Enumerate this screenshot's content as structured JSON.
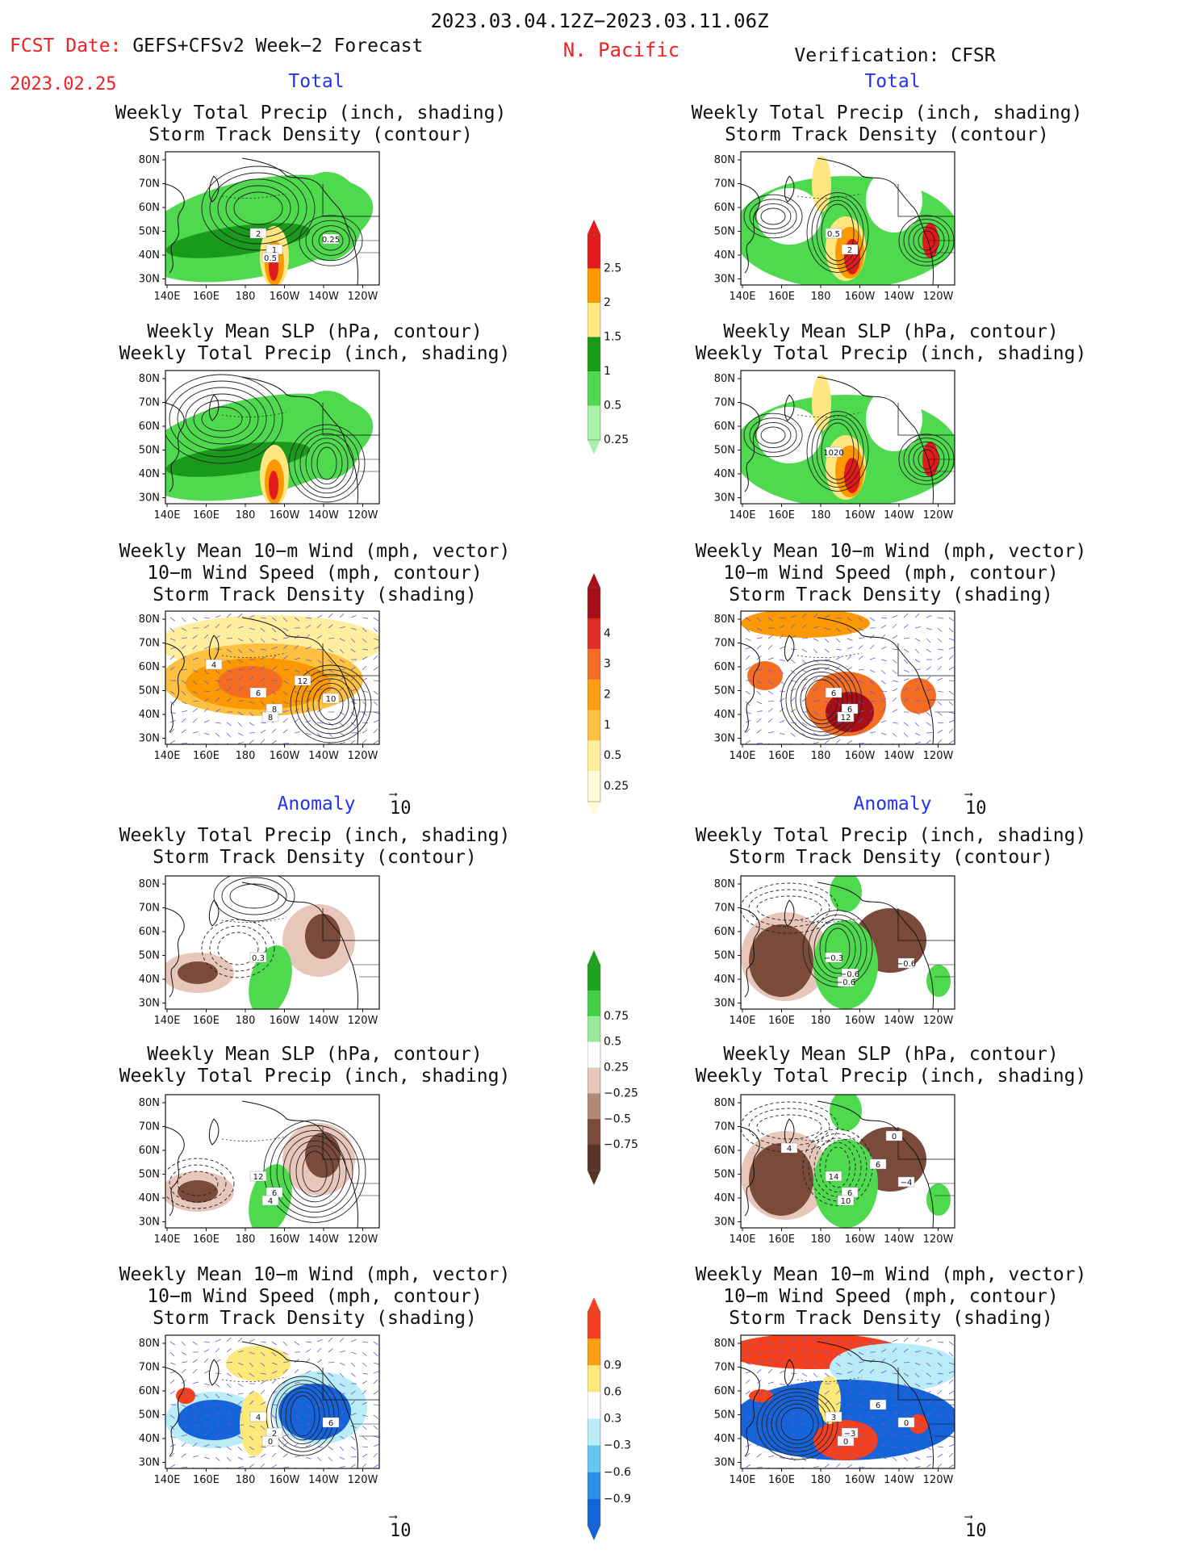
{
  "header": {
    "period": "2023.03.04.12Z−2023.03.11.06Z",
    "fcst_label": "FCST Date: ",
    "fcst_model": "GEFS+CFSv2 Week−2 Forecast",
    "fcst_date": "2023.02.25",
    "region": "N. Pacific",
    "verification": "Verification: CFSR"
  },
  "sections": {
    "total": "Total",
    "anomaly": "Anomaly"
  },
  "titles": {
    "precip_storm": [
      "Weekly Total Precip (inch, shading)",
      "Storm Track Density (contour)"
    ],
    "slp_precip": [
      "Weekly Mean SLP (hPa, contour)",
      "Weekly Total Precip (inch, shading)"
    ],
    "wind_storm": [
      "Weekly Mean 10−m Wind (mph, vector)",
      "10−m Wind Speed (mph, contour)",
      "Storm Track Density (shading)"
    ]
  },
  "axes": {
    "lat_labels": [
      "80N",
      "70N",
      "60N",
      "50N",
      "40N",
      "30N"
    ],
    "lon_labels": [
      "140E",
      "160E",
      "180",
      "160W",
      "140W",
      "120W"
    ]
  },
  "colorbars": {
    "precip_total": {
      "labels": [
        "2.5",
        "2",
        "1.5",
        "1",
        "0.5",
        "0.25"
      ],
      "colors": [
        "#e31a1c",
        "#fd9900",
        "#fee680",
        "#1a9a1a",
        "#4fd94f",
        "#a8f0a8"
      ]
    },
    "storm_total": {
      "labels": [
        "4",
        "3",
        "2",
        "1",
        "0.5",
        "0.25"
      ],
      "colors": [
        "#a50f15",
        "#de2d26",
        "#f46d23",
        "#fd9f13",
        "#fdc040",
        "#feee9e",
        "#fffbd6"
      ]
    },
    "precip_anom": {
      "labels": [
        "0.75",
        "0.5",
        "0.25",
        "−0.25",
        "−0.5",
        "−0.75"
      ],
      "colors": [
        "#1fa31f",
        "#42d142",
        "#9ae89a",
        "#ffffff",
        "#e8c7bb",
        "#b58978",
        "#7a4a3b",
        "#5a3327"
      ]
    },
    "storm_anom": {
      "labels": [
        "0.9",
        "0.6",
        "0.3",
        "−0.3",
        "−0.6",
        "−0.9"
      ],
      "colors": [
        "#f5401f",
        "#fd9f13",
        "#fde97a",
        "#ffffff",
        "#b9ecf7",
        "#63c6f0",
        "#2a8fe6",
        "#1563d9"
      ]
    }
  },
  "contour_labels": {
    "f_total_precip": [
      "2",
      "1",
      "0.5",
      "0.25"
    ],
    "v_total_precip": [
      "0.5",
      "2"
    ],
    "v_total_slp": [
      "1020"
    ],
    "f_total_wind": [
      "6",
      "8",
      "8",
      "10",
      "12",
      "4"
    ],
    "v_total_wind": [
      "6",
      "6",
      "12"
    ],
    "f_anom_precip": [
      "0.3"
    ],
    "v_anom_precip": [
      "−0.3",
      "−0.6",
      "−0.6",
      "−0.6"
    ],
    "f_anom_slp": [
      "12",
      "6",
      "4"
    ],
    "v_anom_slp": [
      "14",
      "6",
      "10",
      "−4",
      "6",
      "4",
      "0"
    ],
    "f_anom_wind": [
      "4",
      "2",
      "0",
      "6"
    ],
    "v_anom_wind": [
      "3",
      "−3",
      "0",
      "0",
      "6"
    ]
  },
  "vector_reference": "10",
  "shade_colors": {
    "land": "#ffffff",
    "precip_green": "#4fd94f",
    "precip_dark": "#1a9a1a",
    "precip_yellow": "#fee680",
    "precip_orange": "#fd9900",
    "precip_red": "#e31a1c",
    "brown_dark": "#7a4a3b",
    "brown_light": "#e8c7bb",
    "blue_dark": "#1563d9",
    "blue_light": "#b9ecf7",
    "vector_blue": "#6a5acd"
  }
}
